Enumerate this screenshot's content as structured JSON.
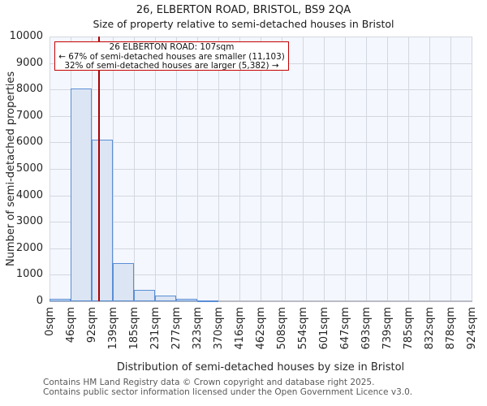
{
  "chart_data": {
    "type": "bar",
    "title": "26, ELBERTON ROAD, BRISTOL, BS9 2QA",
    "subtitle": "Size of property relative to semi-detached houses in Bristol",
    "xlabel": "Distribution of semi-detached houses by size in Bristol",
    "ylabel": "Number of semi-detached properties",
    "x_tick_labels": [
      "0sqm",
      "46sqm",
      "92sqm",
      "139sqm",
      "185sqm",
      "231sqm",
      "277sqm",
      "323sqm",
      "370sqm",
      "416sqm",
      "462sqm",
      "508sqm",
      "554sqm",
      "601sqm",
      "647sqm",
      "693sqm",
      "739sqm",
      "785sqm",
      "832sqm",
      "878sqm",
      "924sqm"
    ],
    "y_tick_labels": [
      "0",
      "1000",
      "2000",
      "3000",
      "4000",
      "5000",
      "6000",
      "7000",
      "8000",
      "9000",
      "10000"
    ],
    "values": [
      100,
      8050,
      6100,
      1450,
      430,
      200,
      90,
      30,
      0,
      0,
      0,
      0,
      0,
      0,
      0,
      0,
      0,
      0,
      0,
      0
    ],
    "ylim": [
      0,
      10000
    ],
    "xlim_sqm": [
      0,
      924
    ],
    "grid": true,
    "legend": null,
    "marker": {
      "x_sqm": 107,
      "color": "#aa0000"
    },
    "annotation": {
      "lines": [
        "26 ELBERTON ROAD: 107sqm",
        "← 67% of semi-detached houses are smaller (11,103)",
        "32% of semi-detached houses are larger (5,382) →"
      ],
      "border_color": "#c40000"
    },
    "colors": {
      "bar_fill": "#dbe5f4",
      "bar_edge": "#5b8ed5",
      "plot_background": "#f4f7fd",
      "gridline": "#d3d7e0",
      "axis_line": "#b9bcc4",
      "marker_line": "#aa0000",
      "footer_text": "#595959"
    }
  },
  "footer": {
    "line1": "Contains HM Land Registry data © Crown copyright and database right 2025.",
    "line2": "Contains public sector information licensed under the Open Government Licence v3.0."
  }
}
